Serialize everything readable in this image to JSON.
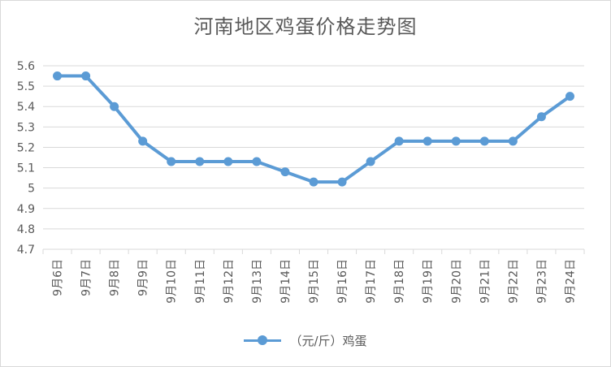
{
  "chart_data": {
    "type": "line",
    "title": "河南地区鸡蛋价格走势图",
    "categories": [
      "9月6日",
      "9月7日",
      "9月8日",
      "9月9日",
      "9月10日",
      "9月11日",
      "9月12日",
      "9月13日",
      "9月14日",
      "9月15日",
      "9月16日",
      "9月17日",
      "9月18日",
      "9月19日",
      "9月20日",
      "9月21日",
      "9月22日",
      "9月23日",
      "9月24日"
    ],
    "series": [
      {
        "name": "（元/斤）鸡蛋",
        "color": "#5b9bd5",
        "values": [
          5.55,
          5.55,
          5.4,
          5.23,
          5.13,
          5.13,
          5.13,
          5.13,
          5.08,
          5.03,
          5.03,
          5.13,
          5.23,
          5.23,
          5.23,
          5.23,
          5.23,
          5.35,
          5.45
        ]
      }
    ],
    "ylim": [
      4.7,
      5.6
    ],
    "yticks": [
      "5.6",
      "5.5",
      "5.4",
      "5.3",
      "5.2",
      "5.1",
      "5",
      "4.9",
      "4.8",
      "4.7"
    ],
    "xlabel": "",
    "ylabel": "",
    "grid": true,
    "legend_position": "bottom"
  }
}
